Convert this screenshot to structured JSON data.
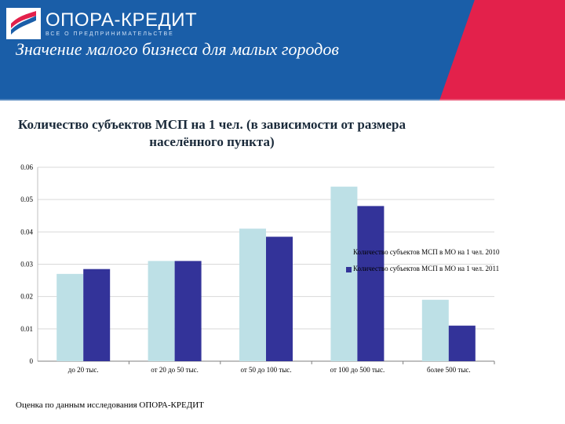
{
  "header": {
    "logo": {
      "name": "ОПОРА-КРЕДИТ",
      "subtitle": "ВСЕ О ПРЕДПРИНИМАТЕЛЬСТВЕ"
    },
    "title": "Значение малого бизнеса для малых городов",
    "colors": {
      "primary": "#1a5ea8",
      "accent": "#e3214b"
    }
  },
  "footnote": "Оценка по данным исследования ОПОРА-КРЕДИТ",
  "chart_data": {
    "type": "bar",
    "title": "Количество субъектов МСП на 1 чел. (в зависимости от размера населённого пункта)",
    "categories": [
      "до 20 тыс.",
      "от 20 до 50 тыс.",
      "от 50 до 100 тыс.",
      "от 100 до 500 тыс.",
      "более 500 тыс."
    ],
    "series": [
      {
        "name": "Количество субъектов МСП в МО на 1 чел. 2010",
        "color": "#bde0e6",
        "values": [
          0.027,
          0.031,
          0.041,
          0.054,
          0.019
        ]
      },
      {
        "name": "Количество субъектов МСП в МО на 1 чел. 2011",
        "color": "#333399",
        "values": [
          0.0285,
          0.031,
          0.0385,
          0.048,
          0.011
        ]
      }
    ],
    "ylim": [
      0,
      0.06
    ],
    "yticks": [
      "0",
      "0.01",
      "0.02",
      "0.03",
      "0.04",
      "0.05",
      "0.06"
    ],
    "grid": true,
    "legend": "right"
  }
}
